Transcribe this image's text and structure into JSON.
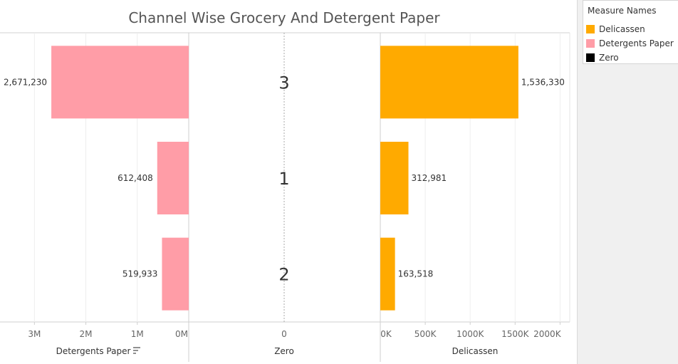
{
  "chart_data": {
    "type": "bar",
    "title": "Channel Wise Grocery And Detergent Paper",
    "categories": [
      "3",
      "1",
      "2"
    ],
    "series": [
      {
        "name": "Detergents Paper",
        "values": [
          2671230,
          612408,
          519933
        ],
        "color": "#ff9da7",
        "value_labels": [
          "2,671,230",
          "612,408",
          "519,933"
        ]
      },
      {
        "name": "Delicassen",
        "values": [
          1536330,
          312981,
          163518
        ],
        "color": "#ffaa00",
        "value_labels": [
          "1,536,330",
          "312,981",
          "163,518"
        ]
      },
      {
        "name": "Zero",
        "values": [
          0,
          0,
          0
        ],
        "color": "#000000"
      }
    ],
    "axes": {
      "detergents": {
        "label": "Detergents Paper",
        "ticks": [
          "3M",
          "2M",
          "1M",
          "0M"
        ],
        "tick_values": [
          3000000,
          2000000,
          1000000,
          0
        ],
        "range": [
          0,
          3600000
        ],
        "direction": "reversed",
        "sorted": true
      },
      "zero": {
        "label": "Zero",
        "ticks": [
          "0"
        ]
      },
      "delicassen": {
        "label": "Delicassen",
        "ticks": [
          "0K",
          "500K",
          "1000K",
          "1500K",
          "2000K"
        ],
        "tick_values": [
          0,
          500000,
          1000000,
          1500000,
          2000000
        ],
        "range": [
          0,
          2100000
        ]
      }
    },
    "grid": true,
    "legend": {
      "title": "Measure Names",
      "position": "right",
      "items": [
        "Delicassen",
        "Detergents Paper",
        "Zero"
      ]
    }
  },
  "legend": {
    "title": "Measure Names",
    "items": [
      {
        "label": "Delicassen",
        "color": "#ffaa00"
      },
      {
        "label": "Detergents Paper",
        "color": "#ff9da7"
      },
      {
        "label": "Zero",
        "color": "#000000"
      }
    ]
  }
}
